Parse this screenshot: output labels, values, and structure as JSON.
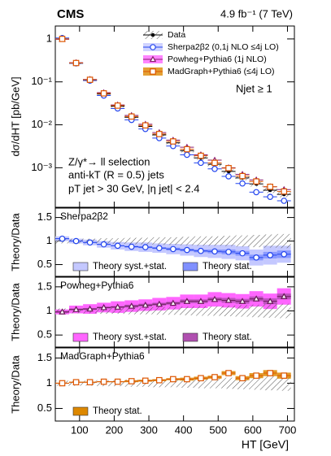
{
  "chart_data": [
    {
      "type": "scatter",
      "title": "CMS",
      "subtitle": "4.9 fb⁻¹ (7 TeV)",
      "y_label": "dσ/dHT [pb/GeV]",
      "annotations": [
        "Njet ≥ 1",
        "Z/γ*→ ll selection",
        "anti-kT (R = 0.5) jets",
        "pT jet > 30 GeV, |η jet| < 2.4"
      ],
      "log_scale": "y",
      "ylim": [
        0.00012,
        2
      ],
      "yticks": [
        {
          "value": 0.001,
          "label": "10⁻³"
        },
        {
          "value": 0.01,
          "label": "10⁻²"
        },
        {
          "value": 0.1,
          "label": "10⁻¹"
        },
        {
          "value": 1,
          "label": "1"
        }
      ],
      "x": [
        50,
        90,
        130,
        170,
        210,
        250,
        290,
        330,
        370,
        410,
        450,
        490,
        530,
        570,
        610,
        650,
        690
      ],
      "series": [
        {
          "name": "Data",
          "color": "#000000",
          "values": [
            1.0,
            0.27,
            0.11,
            0.052,
            0.027,
            0.015,
            0.0092,
            0.0058,
            0.0038,
            0.0025,
            0.0017,
            0.0012,
            0.00082,
            0.00058,
            0.00042,
            0.0003,
            0.00024
          ],
          "uncertainty": [
            0.05,
            0.05,
            0.05,
            0.06,
            0.06,
            0.07,
            0.07,
            0.08,
            0.08,
            0.09,
            0.1,
            0.1,
            0.11,
            0.12,
            0.13,
            0.14,
            0.15
          ]
        },
        {
          "name": "Sherpa2β2 (0,1j NLO ≤4j LO)",
          "color": "#2244ee",
          "marker": "circle",
          "values": [
            1.05,
            0.27,
            0.107,
            0.048,
            0.024,
            0.013,
            0.008,
            0.0049,
            0.0032,
            0.002,
            0.0013,
            0.00094,
            0.00063,
            0.00043,
            0.00027,
            0.00021,
            0.00017
          ]
        },
        {
          "name": "Powheg+Pythia6 (1j NLO)",
          "color": "#8a1a6a",
          "marker": "triangle",
          "values": [
            0.98,
            0.28,
            0.114,
            0.056,
            0.029,
            0.0165,
            0.0103,
            0.0066,
            0.0044,
            0.003,
            0.002,
            0.0015,
            0.001,
            0.0007,
            0.00052,
            0.00036,
            0.00031
          ]
        },
        {
          "name": "MadGraph+Pythia6 (≤4j LO)",
          "color": "#dd5500",
          "marker": "square",
          "values": [
            1.0,
            0.275,
            0.112,
            0.054,
            0.028,
            0.0156,
            0.0097,
            0.0061,
            0.0041,
            0.0027,
            0.0019,
            0.0013,
            0.00098,
            0.00064,
            0.00048,
            0.00036,
            0.00028
          ]
        }
      ]
    },
    {
      "type": "ratio",
      "label": "Sherpa2β2",
      "y_label": "Theory/Data",
      "ylim": [
        0.25,
        1.7
      ],
      "yticks": [
        0.5,
        1,
        1.5
      ],
      "color": "#2244ee",
      "band_color": "#c4c8ff",
      "stat_color": "#8090ff",
      "marker": "circle",
      "legend": [
        "Theory syst.+stat.",
        "Theory stat."
      ],
      "values": [
        1.05,
        1.0,
        0.97,
        0.93,
        0.9,
        0.88,
        0.87,
        0.85,
        0.83,
        0.81,
        0.79,
        0.78,
        0.77,
        0.74,
        0.65,
        0.7,
        0.72
      ],
      "syst_stat": [
        0.05,
        0.05,
        0.06,
        0.07,
        0.08,
        0.09,
        0.1,
        0.1,
        0.11,
        0.12,
        0.13,
        0.14,
        0.15,
        0.15,
        0.17,
        0.2,
        0.18
      ],
      "stat": [
        0.01,
        0.01,
        0.01,
        0.01,
        0.01,
        0.02,
        0.02,
        0.02,
        0.03,
        0.03,
        0.03,
        0.04,
        0.05,
        0.05,
        0.06,
        0.07,
        0.08
      ]
    },
    {
      "type": "ratio",
      "label": "Powheg+Pythia6",
      "y_label": "Theory/Data",
      "ylim": [
        0.25,
        1.7
      ],
      "yticks": [
        0.5,
        1,
        1.5
      ],
      "color": "#6a1a5a",
      "band_color": "#ff66ff",
      "stat_color": "#b050b0",
      "marker": "triangle",
      "legend": [
        "Theory syst.+stat.",
        "Theory stat."
      ],
      "values": [
        0.98,
        1.03,
        1.04,
        1.07,
        1.08,
        1.1,
        1.12,
        1.14,
        1.16,
        1.2,
        1.2,
        1.24,
        1.22,
        1.2,
        1.25,
        1.2,
        1.3
      ],
      "syst_stat": [
        0.05,
        0.08,
        0.1,
        0.1,
        0.12,
        0.12,
        0.12,
        0.13,
        0.13,
        0.14,
        0.14,
        0.15,
        0.15,
        0.15,
        0.16,
        0.16,
        0.17
      ],
      "stat": [
        0.02,
        0.02,
        0.02,
        0.02,
        0.02,
        0.03,
        0.03,
        0.03,
        0.03,
        0.04,
        0.04,
        0.04,
        0.05,
        0.05,
        0.05,
        0.06,
        0.06
      ]
    },
    {
      "type": "ratio",
      "label": "MadGraph+Pythia6",
      "y_label": "Theory/Data",
      "ylim": [
        0.25,
        1.7
      ],
      "yticks": [
        0.5,
        1,
        1.5
      ],
      "color": "#dd5500",
      "stat_color": "#dd8800",
      "marker": "square",
      "legend": [
        "Theory stat."
      ],
      "values": [
        1.0,
        1.02,
        1.02,
        1.03,
        1.03,
        1.04,
        1.05,
        1.06,
        1.08,
        1.08,
        1.1,
        1.12,
        1.2,
        1.1,
        1.15,
        1.2,
        1.15
      ],
      "stat": [
        0.01,
        0.01,
        0.01,
        0.01,
        0.01,
        0.02,
        0.02,
        0.02,
        0.02,
        0.03,
        0.03,
        0.03,
        0.04,
        0.04,
        0.05,
        0.06,
        0.06
      ],
      "x_label": "HT [GeV]",
      "xlim": [
        30,
        720
      ],
      "xticks": [
        100,
        200,
        300,
        400,
        500,
        600,
        700
      ]
    }
  ]
}
